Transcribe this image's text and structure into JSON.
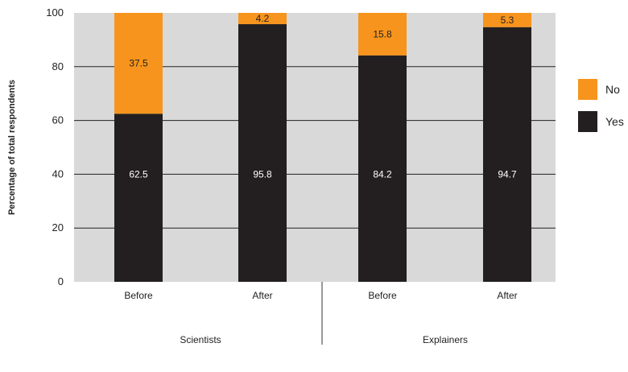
{
  "chart_data": {
    "type": "bar",
    "stacked": true,
    "ylabel": "Percentage of total respondents",
    "ylim": [
      0,
      100
    ],
    "yticks": [
      0,
      20,
      40,
      60,
      80,
      100
    ],
    "categories": [
      "Before",
      "After",
      "Before",
      "After"
    ],
    "groups": [
      {
        "label": "Scientists",
        "categories": [
          "Before",
          "After"
        ]
      },
      {
        "label": "Explainers",
        "categories": [
          "Before",
          "After"
        ]
      }
    ],
    "series": [
      {
        "name": "Yes",
        "color": "#231f20",
        "values": [
          62.5,
          95.8,
          84.2,
          94.7
        ]
      },
      {
        "name": "No",
        "color": "#f7941d",
        "values": [
          37.5,
          4.2,
          15.8,
          5.3
        ]
      }
    ],
    "legend": {
      "position": "right",
      "order": [
        "No",
        "Yes"
      ]
    },
    "grid": true,
    "background_color": "#d9d9d9"
  }
}
